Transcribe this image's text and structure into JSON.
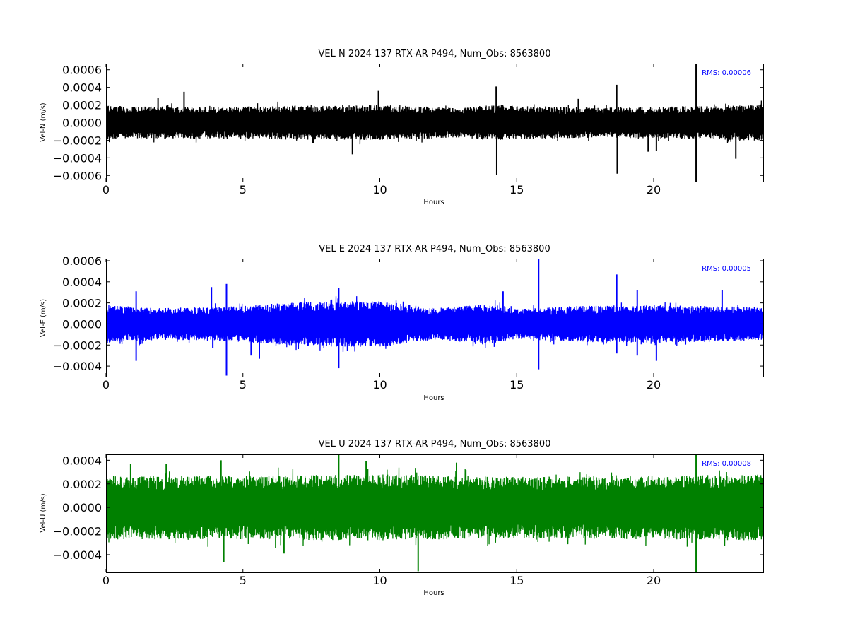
{
  "chart_data": [
    {
      "type": "line",
      "title": "VEL N 2024 137 RTX-AR  P494, Num_Obs: 8563800",
      "xlabel": "Hours",
      "ylabel": "Vel-N (m/s)",
      "color": "#000000",
      "xlim": [
        0,
        24
      ],
      "ylim": [
        -0.00067,
        0.00067
      ],
      "xticks": [
        0,
        5,
        10,
        15,
        20
      ],
      "xtick_labels": [
        "0",
        "5",
        "10",
        "15",
        "20"
      ],
      "yticks": [
        0.0006,
        0.0004,
        0.0002,
        0.0,
        -0.0002,
        -0.0004,
        -0.0006
      ],
      "ytick_labels": [
        "0.0006",
        "0.0004",
        "0.0002",
        "0.0000",
        "−0.0002",
        "−0.0004",
        "−0.0006"
      ],
      "rms_text": "RMS:  0.00006",
      "rms_color": "#0000ff",
      "noise_amplitude": 0.00019,
      "series": [
        {
          "noise_envelope": [
            [
              0,
              0.00019
            ],
            [
              3,
              0.00018
            ],
            [
              6,
              0.00019
            ],
            [
              10,
              0.0002
            ],
            [
              13,
              0.00017
            ],
            [
              14,
              0.0002
            ],
            [
              18,
              0.00017
            ],
            [
              22,
              0.00019
            ],
            [
              24,
              0.00021
            ]
          ],
          "spikes": [
            {
              "x": 1.9,
              "y": 0.00028
            },
            {
              "x": 2.85,
              "y": 0.00035
            },
            {
              "x": 9.0,
              "y": -0.00036
            },
            {
              "x": 9.95,
              "y": 0.00036
            },
            {
              "x": 14.25,
              "y": 0.00041
            },
            {
              "x": 14.27,
              "y": -0.00059
            },
            {
              "x": 17.25,
              "y": 0.00027
            },
            {
              "x": 18.65,
              "y": 0.00043
            },
            {
              "x": 18.67,
              "y": -0.00058
            },
            {
              "x": 19.8,
              "y": -0.00033
            },
            {
              "x": 20.1,
              "y": -0.00032
            },
            {
              "x": 21.55,
              "y": 0.00067
            },
            {
              "x": 21.55,
              "y": -0.00067
            },
            {
              "x": 23.0,
              "y": -0.00041
            }
          ]
        }
      ]
    },
    {
      "type": "line",
      "title": "VEL E 2024 137 RTX-AR  P494, Num_Obs: 8563800",
      "xlabel": "Hours",
      "ylabel": "Vel-E (m/s)",
      "color": "#0000ff",
      "xlim": [
        0,
        24
      ],
      "ylim": [
        -0.0005,
        0.00062
      ],
      "xticks": [
        0,
        5,
        10,
        15,
        20
      ],
      "xtick_labels": [
        "0",
        "5",
        "10",
        "15",
        "20"
      ],
      "yticks": [
        0.0006,
        0.0004,
        0.0002,
        0.0,
        -0.0002,
        -0.0004
      ],
      "ytick_labels": [
        "0.0006",
        "0.0004",
        "0.0002",
        "0.0000",
        "−0.0002",
        "−0.0004"
      ],
      "rms_text": "RMS:  0.00005",
      "rms_color": "#0000ff",
      "noise_amplitude": 0.00017,
      "series": [
        {
          "noise_envelope": [
            [
              0,
              0.00018
            ],
            [
              2,
              0.00015
            ],
            [
              5,
              0.00017
            ],
            [
              7,
              0.00021
            ],
            [
              10,
              0.00022
            ],
            [
              12,
              0.00015
            ],
            [
              14,
              0.00019
            ],
            [
              15,
              0.00014
            ],
            [
              17,
              0.00017
            ],
            [
              20,
              0.00018
            ],
            [
              24,
              0.00016
            ]
          ],
          "spikes": [
            {
              "x": 1.1,
              "y": 0.00031
            },
            {
              "x": 1.1,
              "y": -0.00035
            },
            {
              "x": 3.85,
              "y": 0.00035
            },
            {
              "x": 3.9,
              "y": -0.00023
            },
            {
              "x": 4.4,
              "y": 0.00038
            },
            {
              "x": 4.4,
              "y": -0.00049
            },
            {
              "x": 5.3,
              "y": -0.0003
            },
            {
              "x": 5.6,
              "y": -0.00033
            },
            {
              "x": 8.5,
              "y": 0.00034
            },
            {
              "x": 8.5,
              "y": -0.00042
            },
            {
              "x": 14.5,
              "y": 0.00031
            },
            {
              "x": 15.8,
              "y": 0.00062
            },
            {
              "x": 15.8,
              "y": -0.00043
            },
            {
              "x": 18.65,
              "y": 0.00047
            },
            {
              "x": 18.65,
              "y": -0.00028
            },
            {
              "x": 19.4,
              "y": 0.00032
            },
            {
              "x": 19.4,
              "y": -0.0003
            },
            {
              "x": 20.1,
              "y": -0.00035
            },
            {
              "x": 22.5,
              "y": 0.00032
            }
          ]
        }
      ]
    },
    {
      "type": "line",
      "title": "VEL U 2024 137 RTX-AR  P494, Num_Obs: 8563800",
      "xlabel": "Hours",
      "ylabel": "Vel-U (m/s)",
      "color": "#008000",
      "xlim": [
        0,
        24
      ],
      "ylim": [
        -0.00055,
        0.00045
      ],
      "xticks": [
        0,
        5,
        10,
        15,
        20
      ],
      "xtick_labels": [
        "0",
        "5",
        "10",
        "15",
        "20"
      ],
      "yticks": [
        0.0004,
        0.0002,
        0.0,
        -0.0002,
        -0.0004
      ],
      "ytick_labels": [
        "0.0004",
        "0.0002",
        "0.0000",
        "−0.0002",
        "−0.0004"
      ],
      "rms_text": "RMS:  0.00008",
      "rms_color": "#0000ff",
      "noise_amplitude": 0.00027,
      "series": [
        {
          "noise_envelope": [
            [
              0,
              0.00027
            ],
            [
              5,
              0.00027
            ],
            [
              10,
              0.00028
            ],
            [
              15,
              0.00026
            ],
            [
              20,
              0.00027
            ],
            [
              24,
              0.00028
            ]
          ],
          "spikes": [
            {
              "x": 0.9,
              "y": 0.00037
            },
            {
              "x": 2.2,
              "y": 0.00037
            },
            {
              "x": 4.2,
              "y": 0.0004
            },
            {
              "x": 4.3,
              "y": -0.00046
            },
            {
              "x": 6.5,
              "y": -0.00039
            },
            {
              "x": 8.5,
              "y": 0.00045
            },
            {
              "x": 9.5,
              "y": 0.00039
            },
            {
              "x": 11.4,
              "y": -0.00054
            },
            {
              "x": 12.8,
              "y": 0.00038
            },
            {
              "x": 21.55,
              "y": 0.00045
            },
            {
              "x": 21.55,
              "y": -0.00055
            }
          ]
        }
      ]
    }
  ]
}
